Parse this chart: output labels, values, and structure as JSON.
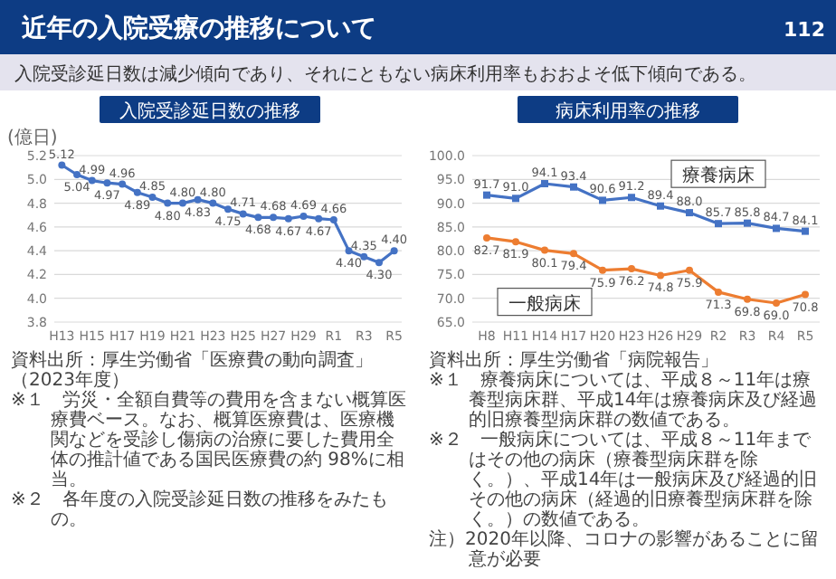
{
  "chart_data": [
    {
      "type": "other",
      "title": "近年の入院受療の推移について",
      "subtitle": "入院受診延日数は減少傾向であり、それにともない病床利用率もおおよそ低下傾向である。",
      "annotations": [
        "112"
      ]
    },
    {
      "type": "line",
      "title": "入院受診延日数の推移",
      "ylabel": "(億日)",
      "categories": [
        "H13",
        null,
        "H15",
        null,
        "H17",
        null,
        "H19",
        null,
        "H21",
        null,
        "H23",
        null,
        "H25",
        null,
        "H27",
        null,
        "H29",
        null,
        "R1",
        null,
        "R3",
        null,
        "R5"
      ],
      "series": [
        {
          "color": "#4472c4",
          "values": [
            5.12,
            5.04,
            4.99,
            4.97,
            4.96,
            4.89,
            4.85,
            4.8,
            4.8,
            4.83,
            4.8,
            4.75,
            4.71,
            4.68,
            4.68,
            4.67,
            4.69,
            4.67,
            4.66,
            4.4,
            4.35,
            4.3,
            4.4
          ],
          "value_labels": [
            "5.12",
            "5.04",
            "4.99",
            "4.97",
            "4.96",
            "4.89",
            "4.85",
            "4.80",
            "4.80",
            "4.83",
            "4.80",
            "4.75",
            "4.71",
            "4.68",
            "4.68",
            "4.67",
            "4.69",
            "4.67",
            "4.66",
            "4.40",
            "4.35",
            "4.30",
            "4.40"
          ]
        }
      ],
      "ylim": [
        3.8,
        5.2
      ],
      "yticks": [
        {
          "value": 3.8,
          "label": "3.8"
        },
        {
          "value": 4.0,
          "label": "4.0"
        },
        {
          "value": 4.2,
          "label": "4.2"
        },
        {
          "value": 4.4,
          "label": "4.4"
        },
        {
          "value": 4.6,
          "label": "4.6"
        },
        {
          "value": 4.8,
          "label": "4.8"
        },
        {
          "value": 5.0,
          "label": "5.0"
        },
        {
          "value": 5.2,
          "label": "5.2"
        }
      ],
      "grid": "y",
      "marker": "circle",
      "annotations": [
        "資料出所：厚生労働省「医療費の動向調査」（2023年度）",
        "※１　労災・全額自費等の費用を含まない概算医療費ベース。なお、概算医療費は、医療機関などを受診し傷病の治療に要した費用全体の推計値である国民医療費の約 98%に相当。",
        "※２　各年度の入院受診延日数の推移をみたもの。"
      ]
    },
    {
      "type": "line",
      "title": "病床利用率の推移",
      "categories": [
        "H8",
        "H11",
        "H14",
        "H17",
        "H20",
        "H23",
        "H26",
        "H29",
        "R2",
        "R3",
        "R4",
        "R5"
      ],
      "series": [
        {
          "name": "療養病床",
          "color": "#4472c4",
          "marker": "square",
          "values": [
            91.7,
            91.0,
            94.1,
            93.4,
            90.6,
            91.2,
            89.4,
            88.0,
            85.7,
            85.8,
            84.7,
            84.1
          ],
          "value_labels": [
            "91.7",
            "91.0",
            "94.1",
            "93.4",
            "90.6",
            "91.2",
            "89.4",
            "88.0",
            "85.7",
            "85.8",
            "84.7",
            "84.1"
          ]
        },
        {
          "name": "一般病床",
          "color": "#ed7d31",
          "marker": "circle",
          "values": [
            82.7,
            81.9,
            80.1,
            79.4,
            75.9,
            76.2,
            74.8,
            75.9,
            71.3,
            69.8,
            69.0,
            70.8
          ],
          "value_labels": [
            "82.7",
            "81.9",
            "80.1",
            "79.4",
            "75.9",
            "76.2",
            "74.8",
            "75.9",
            "71.3",
            "69.8",
            "69.0",
            "70.8"
          ]
        }
      ],
      "ylim": [
        65,
        100
      ],
      "yticks": [
        {
          "value": 65,
          "label": "65.0"
        },
        {
          "value": 70,
          "label": "70.0"
        },
        {
          "value": 75,
          "label": "75.0"
        },
        {
          "value": 80,
          "label": "80.0"
        },
        {
          "value": 85,
          "label": "85.0"
        },
        {
          "value": 90,
          "label": "90.0"
        },
        {
          "value": 95,
          "label": "95.0"
        },
        {
          "value": 100,
          "label": "100.0"
        }
      ],
      "grid": "y",
      "annotations": [
        "資料出所：厚生労働省「病院報告」",
        "※１　療養病床については、平成８～11年は療養型病床群、平成14年は療養病床及び経過的旧療養型病床群の数値である。",
        "※２　一般病床については、平成８～11年まではその他の病床（療養型病床群を除く。）、平成14年は一般病床及び経過的旧その他の病床（経過的旧療養型病床群を除く。）の数値である。",
        "注）2020年以降、コロナの影響があることに留意が必要"
      ]
    }
  ]
}
